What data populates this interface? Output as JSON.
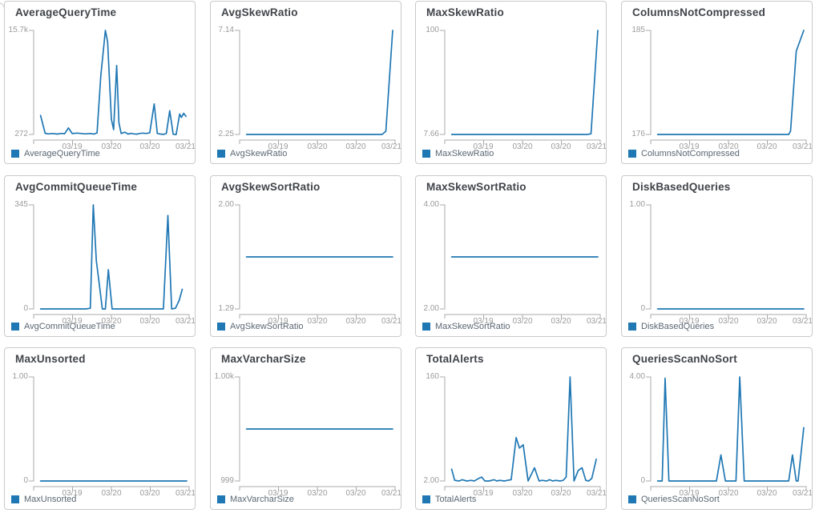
{
  "colors": {
    "line": "#1f77b4",
    "axis": "#ababab",
    "tick_label": "#9b9b9b",
    "title_text": "#40444a",
    "legend_text": "#5a6773",
    "panel_border": "#c9c9c9",
    "background": "#ffffff"
  },
  "x_tick_labels": [
    "03/19",
    "03/20",
    "03/20",
    "03/21"
  ],
  "chart_data": [
    {
      "type": "line",
      "title": "AverageQueryTime",
      "legend": "AverageQueryTime",
      "y_axis": {
        "top_label": "15.7k",
        "bottom_label": "272"
      },
      "ylim": [
        272,
        15700
      ],
      "x_axis_note": "x is fraction of time window 03/18-03/21; ticks at 03/19, 03/20, 03/20, 03/21",
      "points": [
        [
          0.03,
          3100
        ],
        [
          0.06,
          450
        ],
        [
          0.08,
          350
        ],
        [
          0.11,
          420
        ],
        [
          0.14,
          330
        ],
        [
          0.17,
          430
        ],
        [
          0.19,
          380
        ],
        [
          0.215,
          1250
        ],
        [
          0.24,
          400
        ],
        [
          0.27,
          470
        ],
        [
          0.3,
          420
        ],
        [
          0.33,
          350
        ],
        [
          0.36,
          420
        ],
        [
          0.385,
          330
        ],
        [
          0.405,
          500
        ],
        [
          0.43,
          9000
        ],
        [
          0.46,
          15700
        ],
        [
          0.475,
          14000
        ],
        [
          0.5,
          2500
        ],
        [
          0.515,
          1000
        ],
        [
          0.535,
          10500
        ],
        [
          0.55,
          2000
        ],
        [
          0.565,
          420
        ],
        [
          0.59,
          600
        ],
        [
          0.61,
          330
        ],
        [
          0.63,
          430
        ],
        [
          0.65,
          360
        ],
        [
          0.67,
          320
        ],
        [
          0.69,
          430
        ],
        [
          0.71,
          470
        ],
        [
          0.73,
          420
        ],
        [
          0.755,
          520
        ],
        [
          0.784,
          4800
        ],
        [
          0.805,
          420
        ],
        [
          0.825,
          330
        ],
        [
          0.845,
          280
        ],
        [
          0.865,
          420
        ],
        [
          0.887,
          3800
        ],
        [
          0.91,
          300
        ],
        [
          0.93,
          260
        ],
        [
          0.953,
          3300
        ],
        [
          0.965,
          2800
        ],
        [
          0.98,
          3400
        ],
        [
          0.995,
          2950
        ]
      ]
    },
    {
      "type": "line",
      "title": "AvgSkewRatio",
      "legend": "AvgSkewRatio",
      "y_axis": {
        "top_label": "7.14",
        "bottom_label": "2.25"
      },
      "ylim": [
        2.25,
        7.14
      ],
      "points": [
        [
          0.03,
          2.25
        ],
        [
          0.2,
          2.25
        ],
        [
          0.4,
          2.25
        ],
        [
          0.6,
          2.25
        ],
        [
          0.8,
          2.25
        ],
        [
          0.93,
          2.25
        ],
        [
          0.955,
          2.4
        ],
        [
          1.0,
          7.14
        ]
      ]
    },
    {
      "type": "line",
      "title": "MaxSkewRatio",
      "legend": "MaxSkewRatio",
      "y_axis": {
        "top_label": "100",
        "bottom_label": "7.66"
      },
      "ylim": [
        7.66,
        100
      ],
      "points": [
        [
          0.03,
          7.66
        ],
        [
          0.2,
          7.66
        ],
        [
          0.4,
          7.66
        ],
        [
          0.6,
          7.66
        ],
        [
          0.8,
          7.66
        ],
        [
          0.93,
          7.66
        ],
        [
          0.955,
          8.2
        ],
        [
          1.0,
          100
        ]
      ]
    },
    {
      "type": "line",
      "title": "ColumnsNotCompressed",
      "legend": "ColumnsNotCompressed",
      "y_axis": {
        "top_label": "185",
        "bottom_label": "176"
      },
      "ylim": [
        176,
        185
      ],
      "points": [
        [
          0.03,
          176
        ],
        [
          0.2,
          176
        ],
        [
          0.4,
          176
        ],
        [
          0.6,
          176
        ],
        [
          0.8,
          176
        ],
        [
          0.9,
          176
        ],
        [
          0.912,
          176.3
        ],
        [
          0.95,
          183.2
        ],
        [
          1.0,
          185
        ]
      ]
    },
    {
      "type": "line",
      "title": "AvgCommitQueueTime",
      "legend": "AvgCommitQueueTime",
      "y_axis": {
        "top_label": "345",
        "bottom_label": "0"
      },
      "ylim": [
        0,
        345
      ],
      "points": [
        [
          0.03,
          0
        ],
        [
          0.15,
          0
        ],
        [
          0.33,
          0
        ],
        [
          0.36,
          2
        ],
        [
          0.38,
          345
        ],
        [
          0.4,
          160
        ],
        [
          0.42,
          80
        ],
        [
          0.44,
          0
        ],
        [
          0.46,
          0
        ],
        [
          0.48,
          130
        ],
        [
          0.505,
          0
        ],
        [
          0.6,
          0
        ],
        [
          0.7,
          0
        ],
        [
          0.845,
          0
        ],
        [
          0.875,
          310
        ],
        [
          0.9,
          0
        ],
        [
          0.925,
          2
        ],
        [
          0.95,
          28
        ],
        [
          0.97,
          65
        ]
      ]
    },
    {
      "type": "line",
      "title": "AvgSkewSortRatio",
      "legend": "AvgSkewSortRatio",
      "y_axis": {
        "top_label": "2.00",
        "bottom_label": "1.29"
      },
      "ylim": [
        1.29,
        2.0
      ],
      "points": [
        [
          0.03,
          1.645
        ],
        [
          0.5,
          1.645
        ],
        [
          1.0,
          1.645
        ]
      ]
    },
    {
      "type": "line",
      "title": "MaxSkewSortRatio",
      "legend": "MaxSkewSortRatio",
      "y_axis": {
        "top_label": "4.00",
        "bottom_label": "2.00"
      },
      "ylim": [
        2.0,
        4.0
      ],
      "points": [
        [
          0.03,
          3.0
        ],
        [
          0.5,
          3.0
        ],
        [
          1.0,
          3.0
        ]
      ]
    },
    {
      "type": "line",
      "title": "DiskBasedQueries",
      "legend": "DiskBasedQueries",
      "y_axis": {
        "top_label": "1.00",
        "bottom_label": "0"
      },
      "ylim": [
        0,
        1.0
      ],
      "points": [
        [
          0.03,
          0
        ],
        [
          0.5,
          0
        ],
        [
          1.0,
          0
        ]
      ]
    },
    {
      "type": "line",
      "title": "MaxUnsorted",
      "legend": "MaxUnsorted",
      "y_axis": {
        "top_label": "1.00",
        "bottom_label": "0"
      },
      "ylim": [
        0,
        1.0
      ],
      "points": [
        [
          0.03,
          0
        ],
        [
          0.5,
          0
        ],
        [
          1.0,
          0
        ]
      ]
    },
    {
      "type": "line",
      "title": "MaxVarcharSize",
      "legend": "MaxVarcharSize",
      "y_axis": {
        "top_label": "1.00k",
        "bottom_label": "999"
      },
      "ylim": [
        999,
        1000
      ],
      "points": [
        [
          0.03,
          999.5
        ],
        [
          0.5,
          999.5
        ],
        [
          1.0,
          999.5
        ]
      ]
    },
    {
      "type": "line",
      "title": "TotalAlerts",
      "legend": "TotalAlerts",
      "y_axis": {
        "top_label": "160",
        "bottom_label": "2.00"
      },
      "ylim": [
        2,
        160
      ],
      "points": [
        [
          0.03,
          20
        ],
        [
          0.05,
          3
        ],
        [
          0.08,
          2
        ],
        [
          0.1,
          4
        ],
        [
          0.13,
          2
        ],
        [
          0.16,
          3
        ],
        [
          0.18,
          2
        ],
        [
          0.21,
          6
        ],
        [
          0.23,
          8
        ],
        [
          0.25,
          2
        ],
        [
          0.28,
          2
        ],
        [
          0.31,
          4
        ],
        [
          0.33,
          2
        ],
        [
          0.35,
          3
        ],
        [
          0.38,
          2
        ],
        [
          0.4,
          3
        ],
        [
          0.425,
          4
        ],
        [
          0.458,
          68
        ],
        [
          0.48,
          52
        ],
        [
          0.505,
          57
        ],
        [
          0.537,
          2
        ],
        [
          0.58,
          22
        ],
        [
          0.61,
          2
        ],
        [
          0.63,
          3
        ],
        [
          0.66,
          2
        ],
        [
          0.68,
          4
        ],
        [
          0.7,
          2
        ],
        [
          0.72,
          3
        ],
        [
          0.75,
          2
        ],
        [
          0.77,
          3
        ],
        [
          0.79,
          8
        ],
        [
          0.816,
          160
        ],
        [
          0.842,
          2
        ],
        [
          0.87,
          18
        ],
        [
          0.895,
          22
        ],
        [
          0.92,
          3
        ],
        [
          0.94,
          2
        ],
        [
          0.96,
          6
        ],
        [
          0.99,
          35
        ]
      ]
    },
    {
      "type": "line",
      "title": "QueriesScanNoSort",
      "legend": "QueriesScanNoSort",
      "y_axis": {
        "top_label": "4.00",
        "bottom_label": "0"
      },
      "ylim": [
        0,
        4.0
      ],
      "points": [
        [
          0.03,
          0
        ],
        [
          0.06,
          0
        ],
        [
          0.08,
          3.95
        ],
        [
          0.105,
          0
        ],
        [
          0.25,
          0
        ],
        [
          0.42,
          0
        ],
        [
          0.45,
          1.0
        ],
        [
          0.48,
          0
        ],
        [
          0.55,
          0
        ],
        [
          0.575,
          4.0
        ],
        [
          0.605,
          0
        ],
        [
          0.75,
          0
        ],
        [
          0.9,
          0
        ],
        [
          0.925,
          1.0
        ],
        [
          0.95,
          0
        ],
        [
          0.962,
          0
        ],
        [
          1.0,
          2.05
        ]
      ]
    }
  ]
}
